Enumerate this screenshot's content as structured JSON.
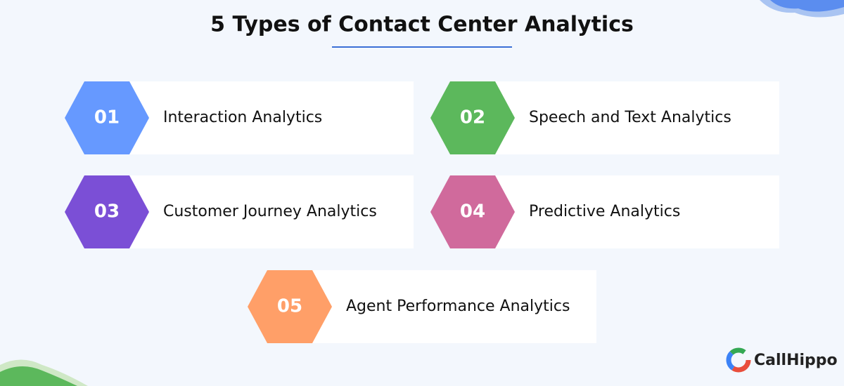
{
  "header": {
    "title": "5 Types of Contact Center Analytics"
  },
  "items": [
    {
      "number": "01",
      "label": "Interaction Analytics"
    },
    {
      "number": "02",
      "label": "Speech and Text Analytics"
    },
    {
      "number": "03",
      "label": "Customer Journey Analytics"
    },
    {
      "number": "04",
      "label": "Predictive Analytics"
    },
    {
      "number": "05",
      "label": "Agent Performance Analytics"
    }
  ],
  "brand": {
    "name": "CallHippo"
  }
}
